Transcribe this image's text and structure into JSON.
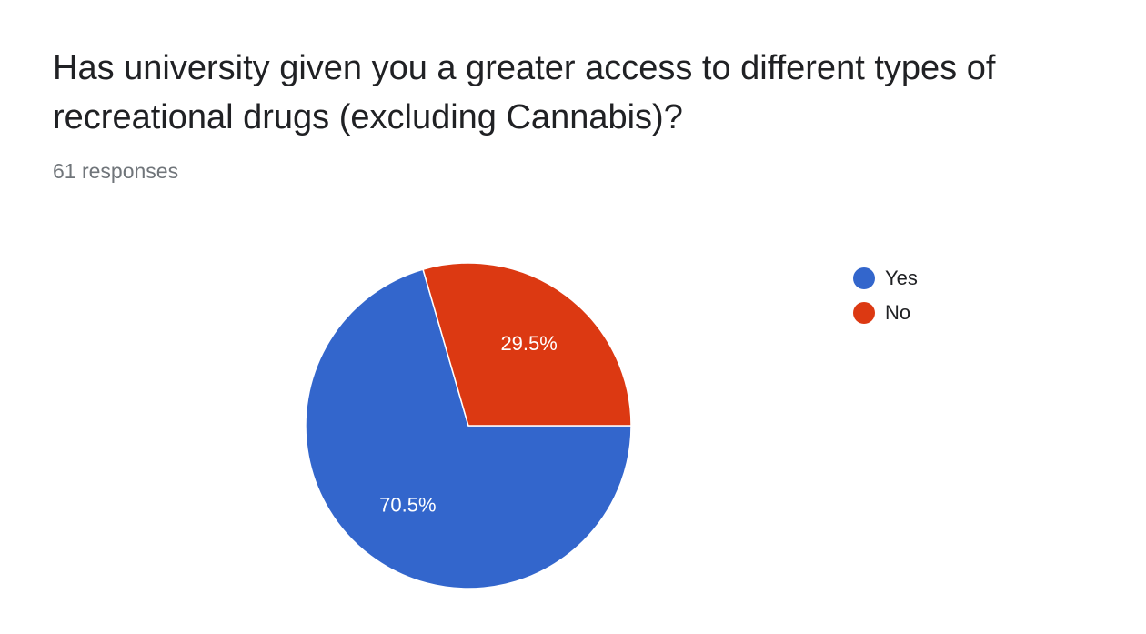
{
  "question": {
    "title": "Has university given you a greater access to different types of recreational drugs (excluding Cannabis)?",
    "responses": "61 responses"
  },
  "chart_data": {
    "type": "pie",
    "categories": [
      "Yes",
      "No"
    ],
    "values": [
      70.5,
      29.5
    ],
    "labels": [
      "70.5%",
      "29.5%"
    ],
    "colors": [
      "#3366cc",
      "#dc3912"
    ],
    "legend_position": "right",
    "start_slice": "No"
  }
}
